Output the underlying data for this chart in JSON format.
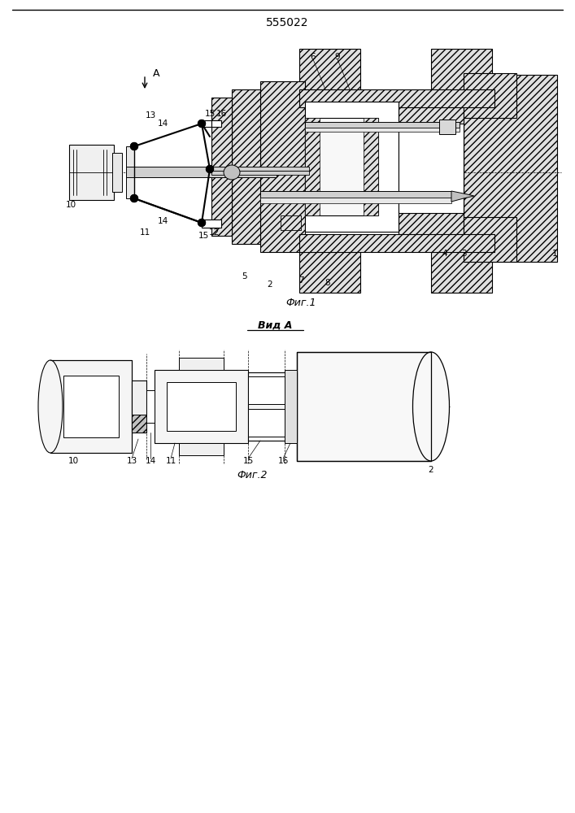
{
  "title": "555022",
  "fig1_caption": "Фиг.1",
  "fig2_caption": "Фиг.2",
  "view_label": "Вид А",
  "bg_color": "#ffffff"
}
